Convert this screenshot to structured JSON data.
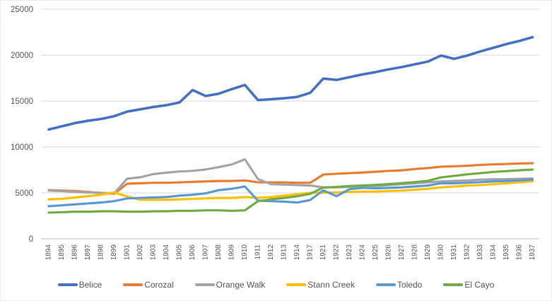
{
  "chart_data": {
    "type": "line",
    "title": "",
    "xlabel": "",
    "ylabel": "",
    "ylim": [
      0,
      25000
    ],
    "y_ticks": [
      0,
      5000,
      10000,
      15000,
      20000,
      25000
    ],
    "grid": true,
    "legend_position": "bottom",
    "gridline_color": "#d9d9d9",
    "axis_line_color": "#bfbfbf",
    "tick_label_color": "#595959",
    "categories": [
      "1894",
      "1895",
      "1896",
      "1897",
      "1898",
      "1899",
      "1901",
      "1902",
      "1903",
      "1904",
      "1905",
      "1906",
      "1907",
      "1908",
      "1909",
      "1910",
      "1911",
      "1912",
      "1913",
      "1914",
      "1917",
      "1921",
      "1922",
      "1923",
      "1924",
      "1925",
      "1926",
      "1927",
      "1928",
      "1929",
      "1930",
      "1931",
      "1932",
      "1933",
      "1934",
      "1935",
      "1936",
      "1937"
    ],
    "series": [
      {
        "name": "Belice",
        "color": "#4472c4",
        "line_width": 3.6,
        "values": [
          11900,
          12250,
          12600,
          12850,
          13050,
          13350,
          13850,
          14100,
          14350,
          14550,
          14850,
          16200,
          15550,
          15800,
          16300,
          16750,
          15100,
          15200,
          15300,
          15450,
          15900,
          17450,
          17300,
          17600,
          17900,
          18150,
          18450,
          18700,
          19000,
          19300,
          19950,
          19600,
          19950,
          20400,
          20800,
          21200,
          21550,
          21950
        ]
      },
      {
        "name": "Corozal",
        "color": "#ed7d31",
        "line_width": 3.2,
        "values": [
          5300,
          5250,
          5200,
          5100,
          5000,
          4900,
          6000,
          6050,
          6100,
          6100,
          6150,
          6200,
          6250,
          6300,
          6300,
          6350,
          6150,
          6150,
          6150,
          6100,
          6100,
          7000,
          7080,
          7150,
          7220,
          7300,
          7400,
          7450,
          7600,
          7700,
          7850,
          7900,
          7950,
          8050,
          8100,
          8150,
          8200,
          8230
        ]
      },
      {
        "name": "Orange Walk",
        "color": "#a5a5a5",
        "line_width": 3.2,
        "values": [
          5250,
          5200,
          5100,
          5050,
          5000,
          4950,
          6550,
          6700,
          7050,
          7200,
          7330,
          7400,
          7550,
          7800,
          8100,
          8650,
          6500,
          5950,
          5900,
          5850,
          5800,
          5600,
          5600,
          5650,
          5700,
          5750,
          5850,
          5950,
          6050,
          6150,
          6250,
          6300,
          6350,
          6440,
          6480,
          6500,
          6530,
          6560
        ]
      },
      {
        "name": "Stann Creek",
        "color": "#ffc000",
        "line_width": 3.2,
        "values": [
          4300,
          4350,
          4500,
          4650,
          4800,
          5050,
          4600,
          4250,
          4250,
          4250,
          4300,
          4350,
          4400,
          4450,
          4450,
          4550,
          4460,
          4550,
          4700,
          4850,
          5000,
          5020,
          5050,
          5100,
          5150,
          5150,
          5200,
          5250,
          5350,
          5450,
          5600,
          5700,
          5800,
          5850,
          5950,
          6050,
          6150,
          6250
        ]
      },
      {
        "name": "Toledo",
        "color": "#5b9bd5",
        "line_width": 3.2,
        "values": [
          3550,
          3650,
          3750,
          3850,
          3950,
          4100,
          4400,
          4450,
          4500,
          4550,
          4700,
          4800,
          4950,
          5300,
          5450,
          5700,
          4150,
          4100,
          4050,
          3950,
          4230,
          5280,
          4640,
          5400,
          5550,
          5500,
          5550,
          5600,
          5700,
          5800,
          6050,
          6050,
          6100,
          6170,
          6250,
          6300,
          6370,
          6440
        ]
      },
      {
        "name": "El Cayo",
        "color": "#70ad47",
        "line_width": 3.2,
        "values": [
          2850,
          2900,
          2950,
          2950,
          3000,
          3000,
          2950,
          2950,
          3000,
          3000,
          3050,
          3050,
          3100,
          3100,
          3050,
          3100,
          4100,
          4300,
          4450,
          4640,
          4900,
          5590,
          5650,
          5750,
          5800,
          5870,
          5950,
          6060,
          6180,
          6310,
          6690,
          6850,
          7020,
          7150,
          7280,
          7370,
          7460,
          7540
        ]
      }
    ]
  }
}
